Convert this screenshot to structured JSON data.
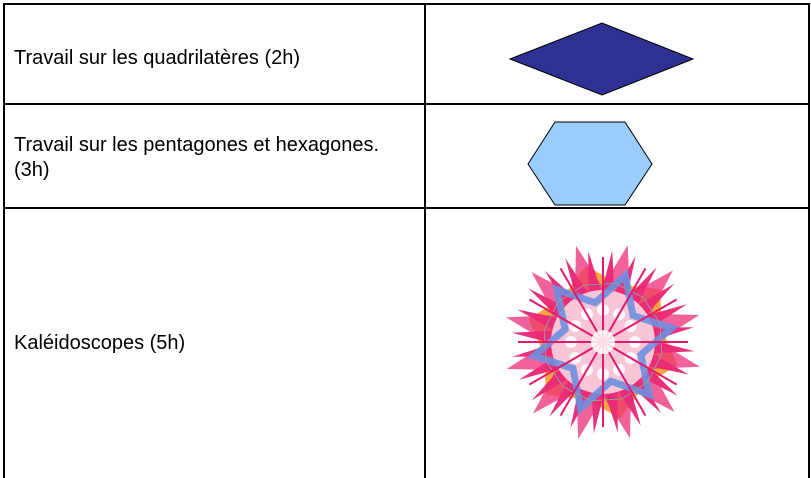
{
  "table": {
    "rows": [
      [
        "Travail sur les quadrilatères (2h)"
      ],
      [
        "Travail sur les pentagones et hexagones. (3h)"
      ],
      [
        "Kaléidoscopes (5h)"
      ]
    ]
  }
}
